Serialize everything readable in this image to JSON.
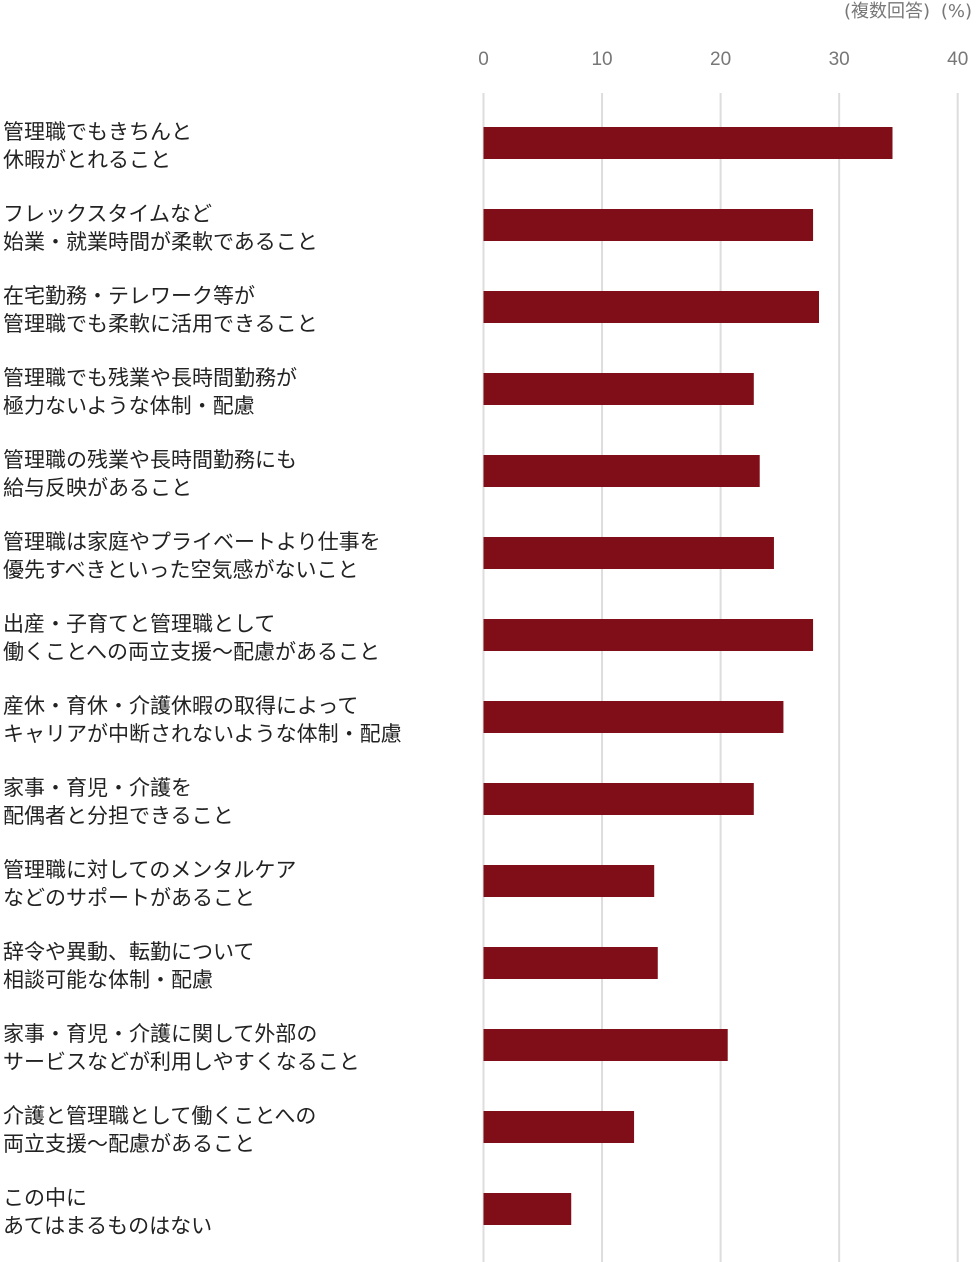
{
  "chart_data": {
    "type": "bar",
    "orientation": "horizontal",
    "note": "(複数回答)",
    "unit": "(%)",
    "xlim": [
      0,
      40
    ],
    "ticks": [
      "0",
      "10",
      "20",
      "30",
      "40"
    ],
    "grid": true,
    "bar_color": "#800e18",
    "categories": [
      [
        "管理職でもきちんと",
        "休暇がとれること"
      ],
      [
        "フレックスタイムなど",
        "始業・就業時間が柔軟であること"
      ],
      [
        "在宅勤務・テレワーク等が",
        "管理職でも柔軟に活用できること"
      ],
      [
        "管理職でも残業や長時間勤務が",
        "極力ないような体制・配慮"
      ],
      [
        "管理職の残業や長時間勤務にも",
        "給与反映があること"
      ],
      [
        "管理職は家庭やプライベートより仕事を",
        "優先すべきといった空気感がないこと"
      ],
      [
        "出産・子育てと管理職として",
        "働くことへの両立支援〜配慮があること"
      ],
      [
        "産休・育休・介護休暇の取得によって",
        "キャリアが中断されないような体制・配慮"
      ],
      [
        "家事・育児・介護を",
        "配偶者と分担できること"
      ],
      [
        "管理職に対してのメンタルケア",
        "などのサポートがあること"
      ],
      [
        "辞令や異動、転勤について",
        "相談可能な体制・配慮"
      ],
      [
        "家事・育児・介護に関して外部の",
        "サービスなどが利用しやすくなること"
      ],
      [
        "介護と管理職として働くことへの",
        "両立支援〜配慮があること"
      ],
      [
        "この中に",
        "あてはまるものはない"
      ]
    ],
    "values": [
      34.5,
      27.8,
      28.3,
      22.8,
      23.3,
      24.5,
      27.8,
      25.3,
      22.8,
      14.4,
      14.7,
      20.6,
      12.7,
      7.4
    ]
  }
}
